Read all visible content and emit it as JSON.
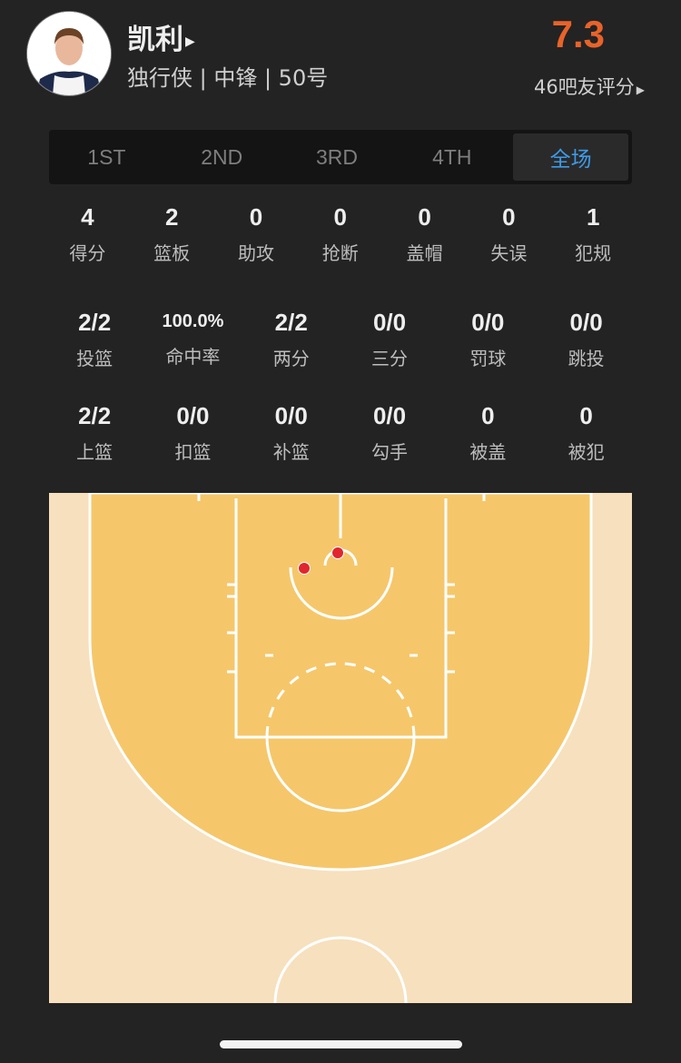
{
  "player": {
    "name": "凯利",
    "team_position_number": "独行侠 | 中锋 | 50号",
    "rating": "7.3",
    "rating_count_label": "46吧友评分"
  },
  "tabs": [
    {
      "label": "1ST"
    },
    {
      "label": "2ND"
    },
    {
      "label": "3RD"
    },
    {
      "label": "4TH"
    },
    {
      "label": "全场",
      "active": true
    }
  ],
  "basic_stats": [
    {
      "value": "4",
      "label": "得分"
    },
    {
      "value": "2",
      "label": "篮板"
    },
    {
      "value": "0",
      "label": "助攻"
    },
    {
      "value": "0",
      "label": "抢断"
    },
    {
      "value": "0",
      "label": "盖帽"
    },
    {
      "value": "0",
      "label": "失误"
    },
    {
      "value": "1",
      "label": "犯规"
    }
  ],
  "shooting_stats": [
    {
      "value": "2/2",
      "label": "投篮"
    },
    {
      "value": "100.0%",
      "label": "命中率"
    },
    {
      "value": "2/2",
      "label": "两分"
    },
    {
      "value": "0/0",
      "label": "三分"
    },
    {
      "value": "0/0",
      "label": "罚球"
    },
    {
      "value": "0/0",
      "label": "跳投"
    }
  ],
  "shot_type_stats": [
    {
      "value": "2/2",
      "label": "上篮"
    },
    {
      "value": "0/0",
      "label": "扣篮"
    },
    {
      "value": "0/0",
      "label": "补篮"
    },
    {
      "value": "0/0",
      "label": "勾手"
    },
    {
      "value": "0",
      "label": "被盖"
    },
    {
      "value": "0",
      "label": "被犯"
    }
  ],
  "shot_chart": {
    "made_shots": 2,
    "missed_shots": 0,
    "made_color": "#e0262f"
  },
  "colors": {
    "accent": "#3d9be9",
    "rating": "#e8632a",
    "court_inner": "#f5c76a",
    "court_outer": "#f7e0bd"
  }
}
